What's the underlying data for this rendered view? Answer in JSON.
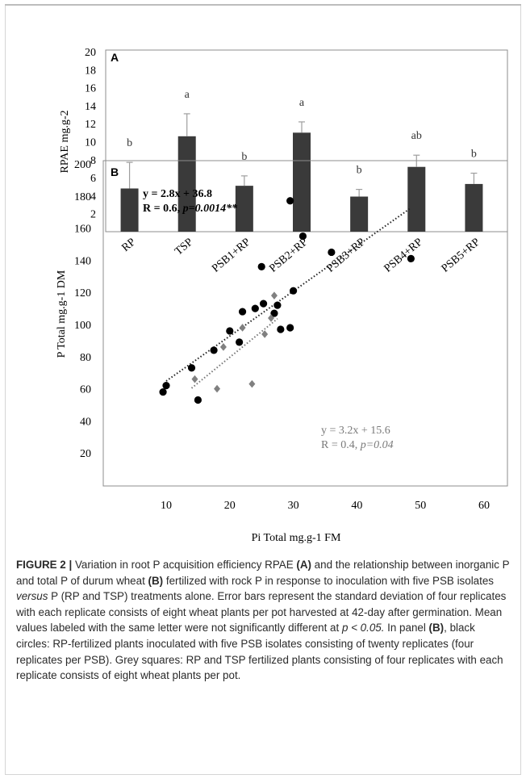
{
  "chart_data": [
    {
      "type": "bar",
      "panel_label": "A",
      "ylabel": "RPAE mg.g-2",
      "ylim": [
        0,
        20
      ],
      "yticks": [
        "20",
        "18",
        "16",
        "14",
        "12",
        "10",
        "8",
        "6",
        "4",
        "2"
      ],
      "categories": [
        "RP",
        "TSP",
        "PSB1+RP",
        "PSB2+RP",
        "PSB3+RP",
        "PSB4+RP",
        "PSB5+RP"
      ],
      "values": [
        4.8,
        10.6,
        5.1,
        11.0,
        3.9,
        7.2,
        5.3
      ],
      "errors": [
        2.9,
        2.5,
        1.1,
        1.2,
        0.8,
        1.3,
        1.2
      ],
      "letters": [
        "b",
        "a",
        "b",
        "a",
        "b",
        "ab",
        "b"
      ],
      "bar_color": "#3a3a3a"
    },
    {
      "type": "scatter",
      "panel_label": "B",
      "xlabel": "Pi Total mg.g-1 FM",
      "ylabel": "P Total mg.g-1 DM",
      "xlim": [
        0,
        60
      ],
      "ylim": [
        0,
        200
      ],
      "xticks": [
        "10",
        "20",
        "30",
        "40",
        "50",
        "60"
      ],
      "yticks": [
        "200",
        "180",
        "160",
        "140",
        "120",
        "100",
        "80",
        "60",
        "40",
        "20"
      ],
      "series": [
        {
          "marker": "circle",
          "color": "#000000",
          "points": [
            [
              9.5,
              58
            ],
            [
              10,
              62
            ],
            [
              14,
              73
            ],
            [
              15,
              53
            ],
            [
              17.5,
              84
            ],
            [
              20,
              96
            ],
            [
              21.5,
              89
            ],
            [
              22,
              108
            ],
            [
              24,
              110
            ],
            [
              25,
              136
            ],
            [
              25.3,
              113
            ],
            [
              27,
              107
            ],
            [
              27.5,
              112
            ],
            [
              28,
              97
            ],
            [
              29.5,
              177
            ],
            [
              29.5,
              98
            ],
            [
              30,
              121
            ],
            [
              31.5,
              155
            ],
            [
              36,
              145
            ],
            [
              48.5,
              141
            ]
          ],
          "fit": {
            "slope": 2.8,
            "intercept": 36.8,
            "x_range": [
              10,
              48.5
            ]
          },
          "equation": "y = 2.8x + 36.8",
          "stats_r": "R = 0.6,",
          "stats_p": "p=0.0014**"
        },
        {
          "marker": "diamond",
          "color": "#808080",
          "points": [
            [
              14.5,
              66
            ],
            [
              18,
              60
            ],
            [
              19,
              86
            ],
            [
              22,
              98
            ],
            [
              23.5,
              63
            ],
            [
              25.5,
              94
            ],
            [
              26.5,
              104
            ],
            [
              27,
              118
            ]
          ],
          "fit": {
            "slope": 3.2,
            "intercept": 15.6,
            "x_range": [
              14,
              27.5
            ]
          },
          "equation": "y = 3.2x + 15.6",
          "stats_r": "R = 0.4,",
          "stats_p": "p=0.04"
        }
      ]
    }
  ],
  "caption": {
    "label": "FIGURE 2 |",
    "text_1": " Variation in root P acquisition efficiency RPAE ",
    "panel_a": "(A)",
    "text_2": " and the relationship between inorganic P and total P of durum wheat ",
    "panel_b": "(B)",
    "text_3": " fertilized with rock P in response to inoculation with five PSB isolates ",
    "versus": "versus",
    "text_4": " P (RP and TSP) treatments alone. Error bars represent the standard deviation of four replicates with each replicate consists of eight wheat plants per pot harvested at 42-day after germination. Mean values labeled with the same letter were not significantly different at ",
    "pvalue": "p < 0.05.",
    "text_5": " In panel ",
    "panel_b2": "(B)",
    "text_6": ", black circles: RP-fertilized plants inoculated with five PSB isolates consisting of twenty replicates (four replicates per PSB). Grey squares: RP and TSP fertilized plants consisting of four replicates with each replicate consists of eight wheat plants per pot."
  }
}
